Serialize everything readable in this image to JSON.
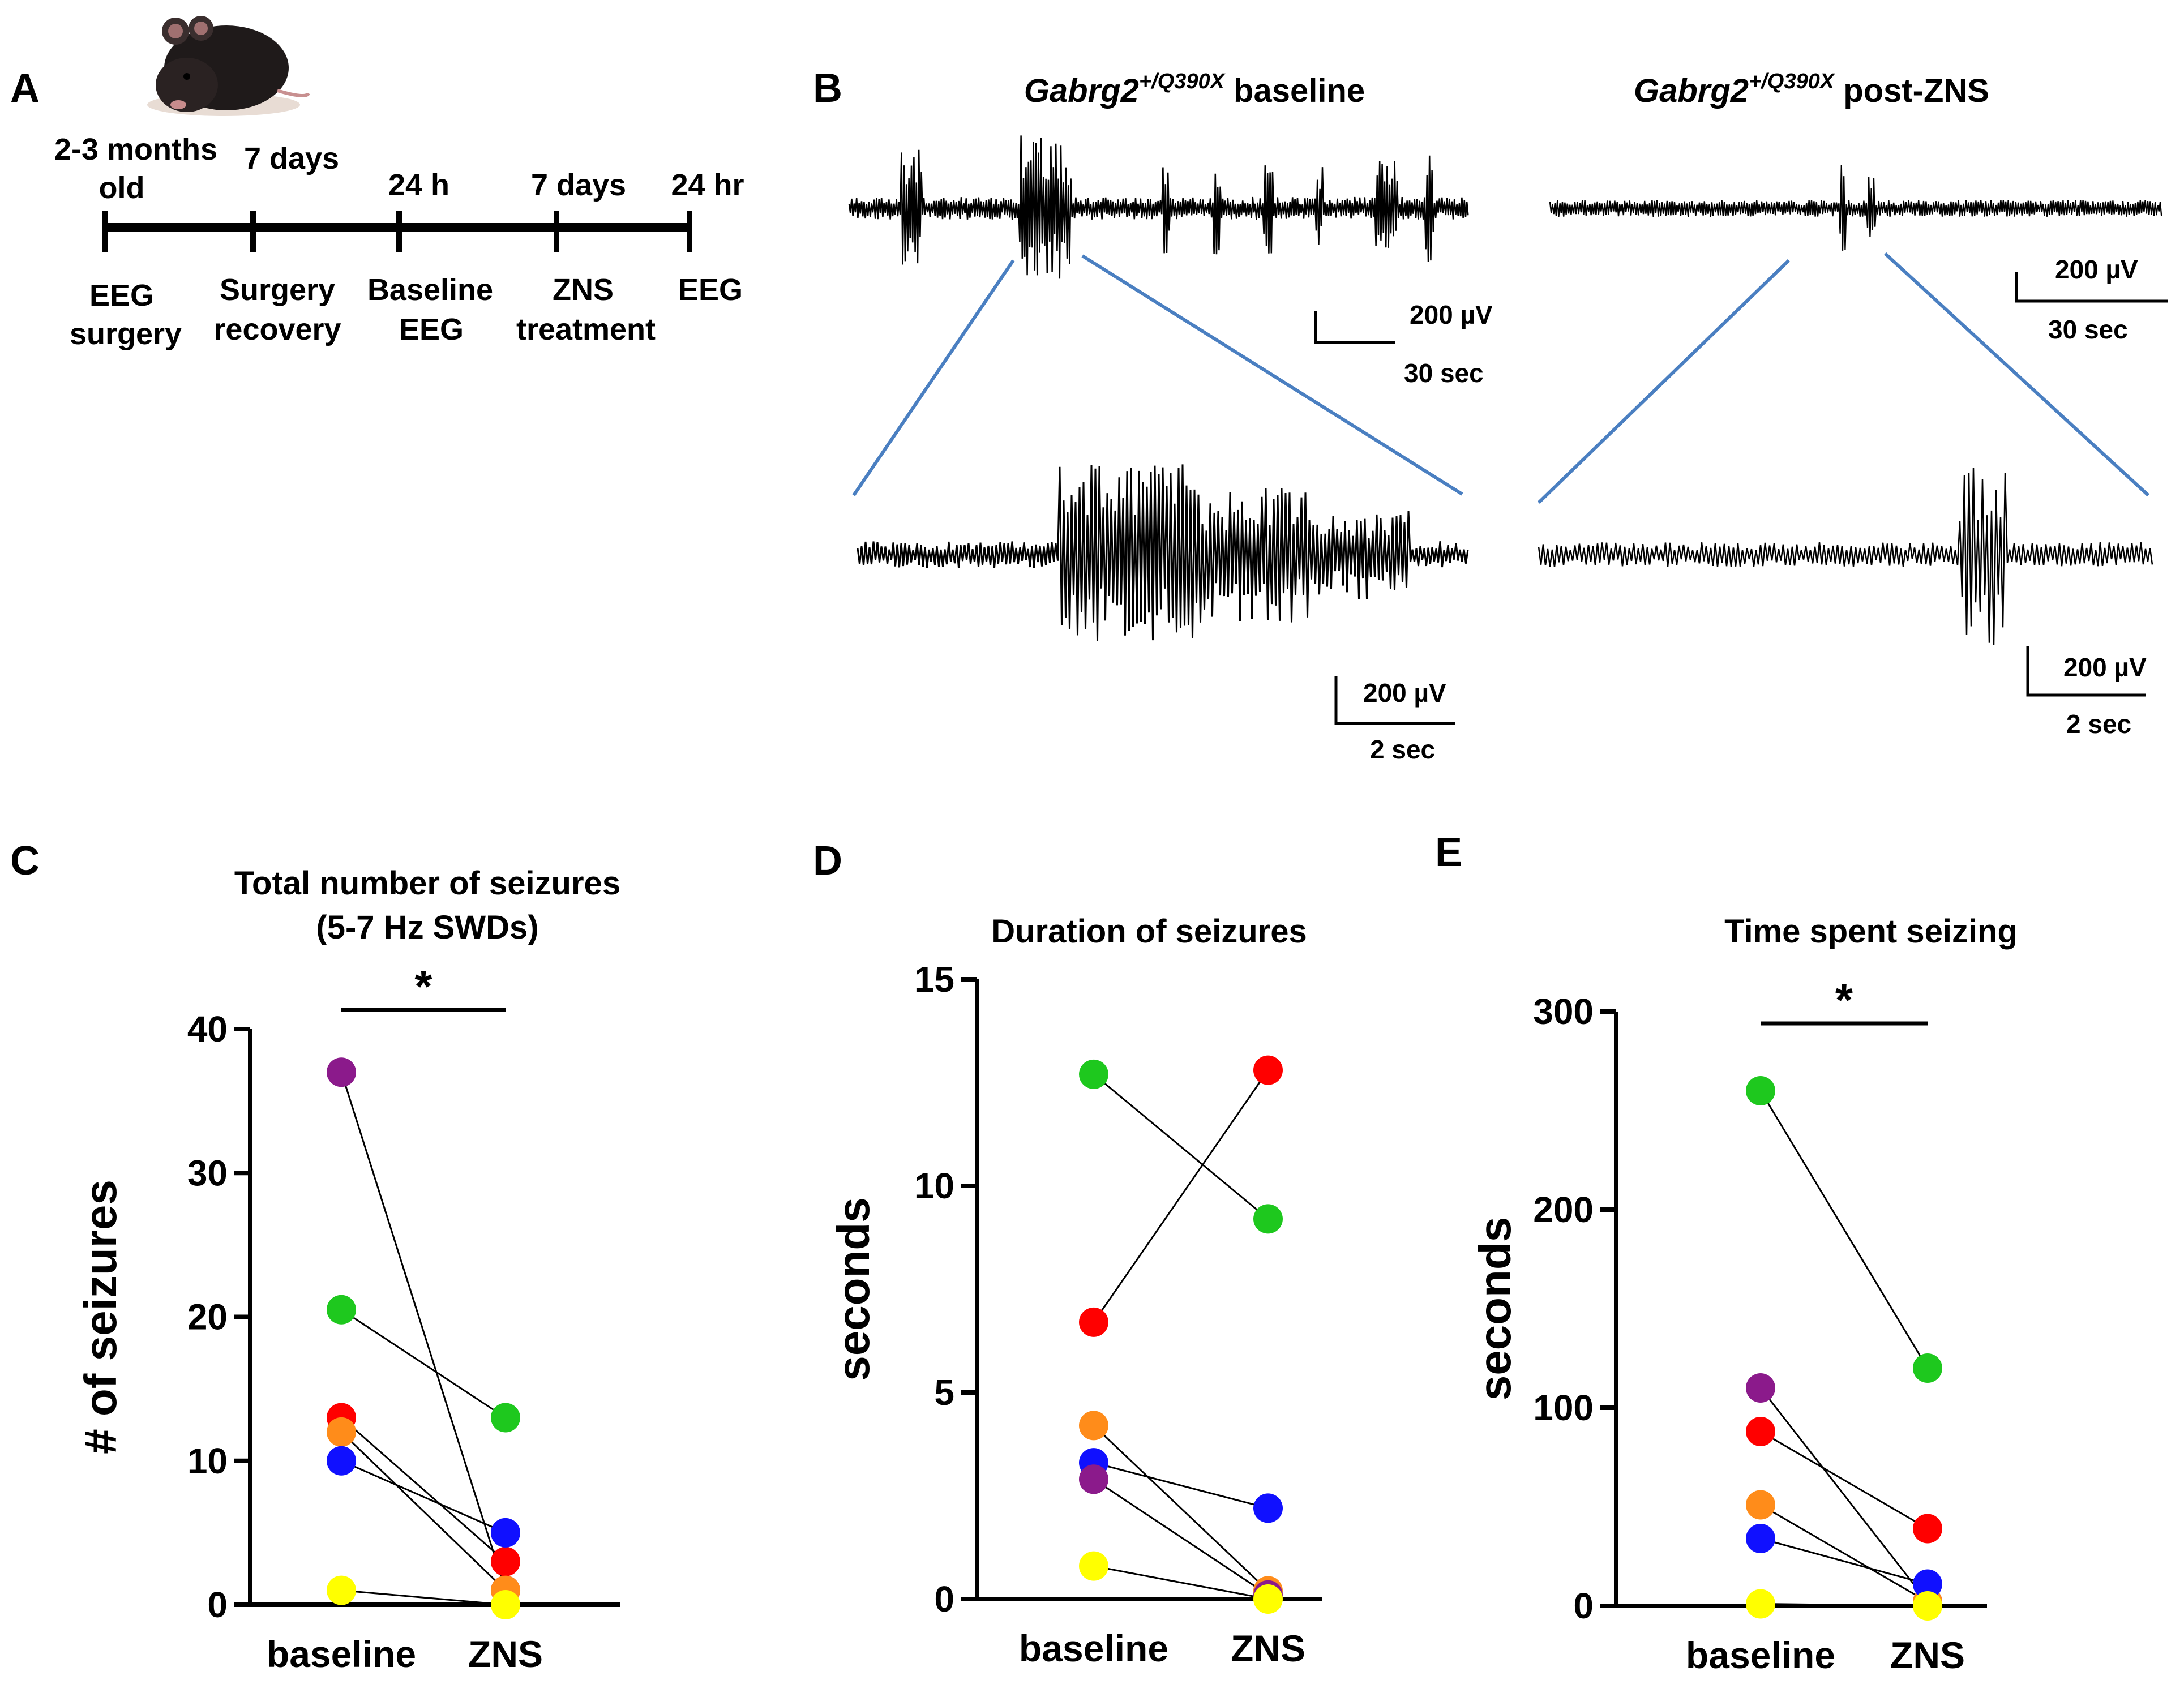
{
  "panel_labels": {
    "a": "A",
    "b": "B",
    "c": "C",
    "d": "D",
    "e": "E"
  },
  "timeline": {
    "top_labels": [
      "2-3 months",
      "old",
      "7 days",
      "24 h",
      "7 days",
      "24 hr"
    ],
    "bottom_labels": [
      [
        "EEG",
        "surgery"
      ],
      [
        "Surgery",
        "recovery"
      ],
      [
        "Baseline",
        "EEG"
      ],
      [
        "ZNS",
        "treatment"
      ],
      [
        "EEG",
        ""
      ]
    ],
    "mouse_icon": "mouse-photo"
  },
  "eeg": {
    "gene_name": "Gabrg2",
    "gene_superscript": "+/Q390X",
    "baseline_suffix": " baseline",
    "post_suffix": " post-ZNS",
    "scale_200uv": "200 µV",
    "scale_30sec": "30 sec",
    "scale_2sec": "2 sec",
    "zoom_line_color": "#4a7fc1",
    "trace_color": "#000000"
  },
  "colors": {
    "purple": "#8b1a8b",
    "green": "#1ec81e",
    "red": "#ff0000",
    "orange": "#ff8c1a",
    "blue": "#1010ff",
    "yellow": "#ffff00"
  },
  "chart_data": [
    {
      "type": "scatter",
      "panel": "C",
      "title": "Total number of seizures",
      "subtitle": "(5-7 Hz SWDs)",
      "xlabel": "",
      "ylabel": "# of seizures",
      "categories": [
        "baseline",
        "ZNS"
      ],
      "ylim": [
        0,
        40
      ],
      "yticks": [
        0,
        10,
        20,
        30,
        40
      ],
      "significance": "*",
      "series": [
        {
          "name": "purple",
          "values": [
            37,
            1
          ]
        },
        {
          "name": "green",
          "values": [
            20.5,
            13
          ]
        },
        {
          "name": "red",
          "values": [
            13,
            3
          ]
        },
        {
          "name": "orange",
          "values": [
            12,
            1
          ]
        },
        {
          "name": "blue",
          "values": [
            10,
            5
          ]
        },
        {
          "name": "yellow",
          "values": [
            1,
            0
          ]
        }
      ]
    },
    {
      "type": "scatter",
      "panel": "D",
      "title": "Duration of seizures",
      "subtitle": "",
      "xlabel": "",
      "ylabel": "seconds",
      "categories": [
        "baseline",
        "ZNS"
      ],
      "ylim": [
        0,
        15
      ],
      "yticks": [
        0,
        5,
        10,
        15
      ],
      "significance": "",
      "series": [
        {
          "name": "green",
          "values": [
            12.7,
            9.2
          ]
        },
        {
          "name": "red",
          "values": [
            6.7,
            12.8
          ]
        },
        {
          "name": "orange",
          "values": [
            4.2,
            0.2
          ]
        },
        {
          "name": "blue",
          "values": [
            3.3,
            2.2
          ]
        },
        {
          "name": "purple",
          "values": [
            2.9,
            0.1
          ]
        },
        {
          "name": "yellow",
          "values": [
            0.8,
            0
          ]
        }
      ]
    },
    {
      "type": "scatter",
      "panel": "E",
      "title": "Time spent seizing",
      "subtitle": "",
      "xlabel": "",
      "ylabel": "seconds",
      "categories": [
        "baseline",
        "ZNS"
      ],
      "ylim": [
        0,
        300
      ],
      "yticks": [
        0,
        100,
        200,
        300
      ],
      "significance": "*",
      "series": [
        {
          "name": "green",
          "values": [
            260,
            120
          ]
        },
        {
          "name": "purple",
          "values": [
            110,
            2
          ]
        },
        {
          "name": "red",
          "values": [
            88,
            39
          ]
        },
        {
          "name": "orange",
          "values": [
            51,
            2
          ]
        },
        {
          "name": "blue",
          "values": [
            34,
            11
          ]
        },
        {
          "name": "yellow",
          "values": [
            1,
            0
          ]
        }
      ]
    }
  ]
}
